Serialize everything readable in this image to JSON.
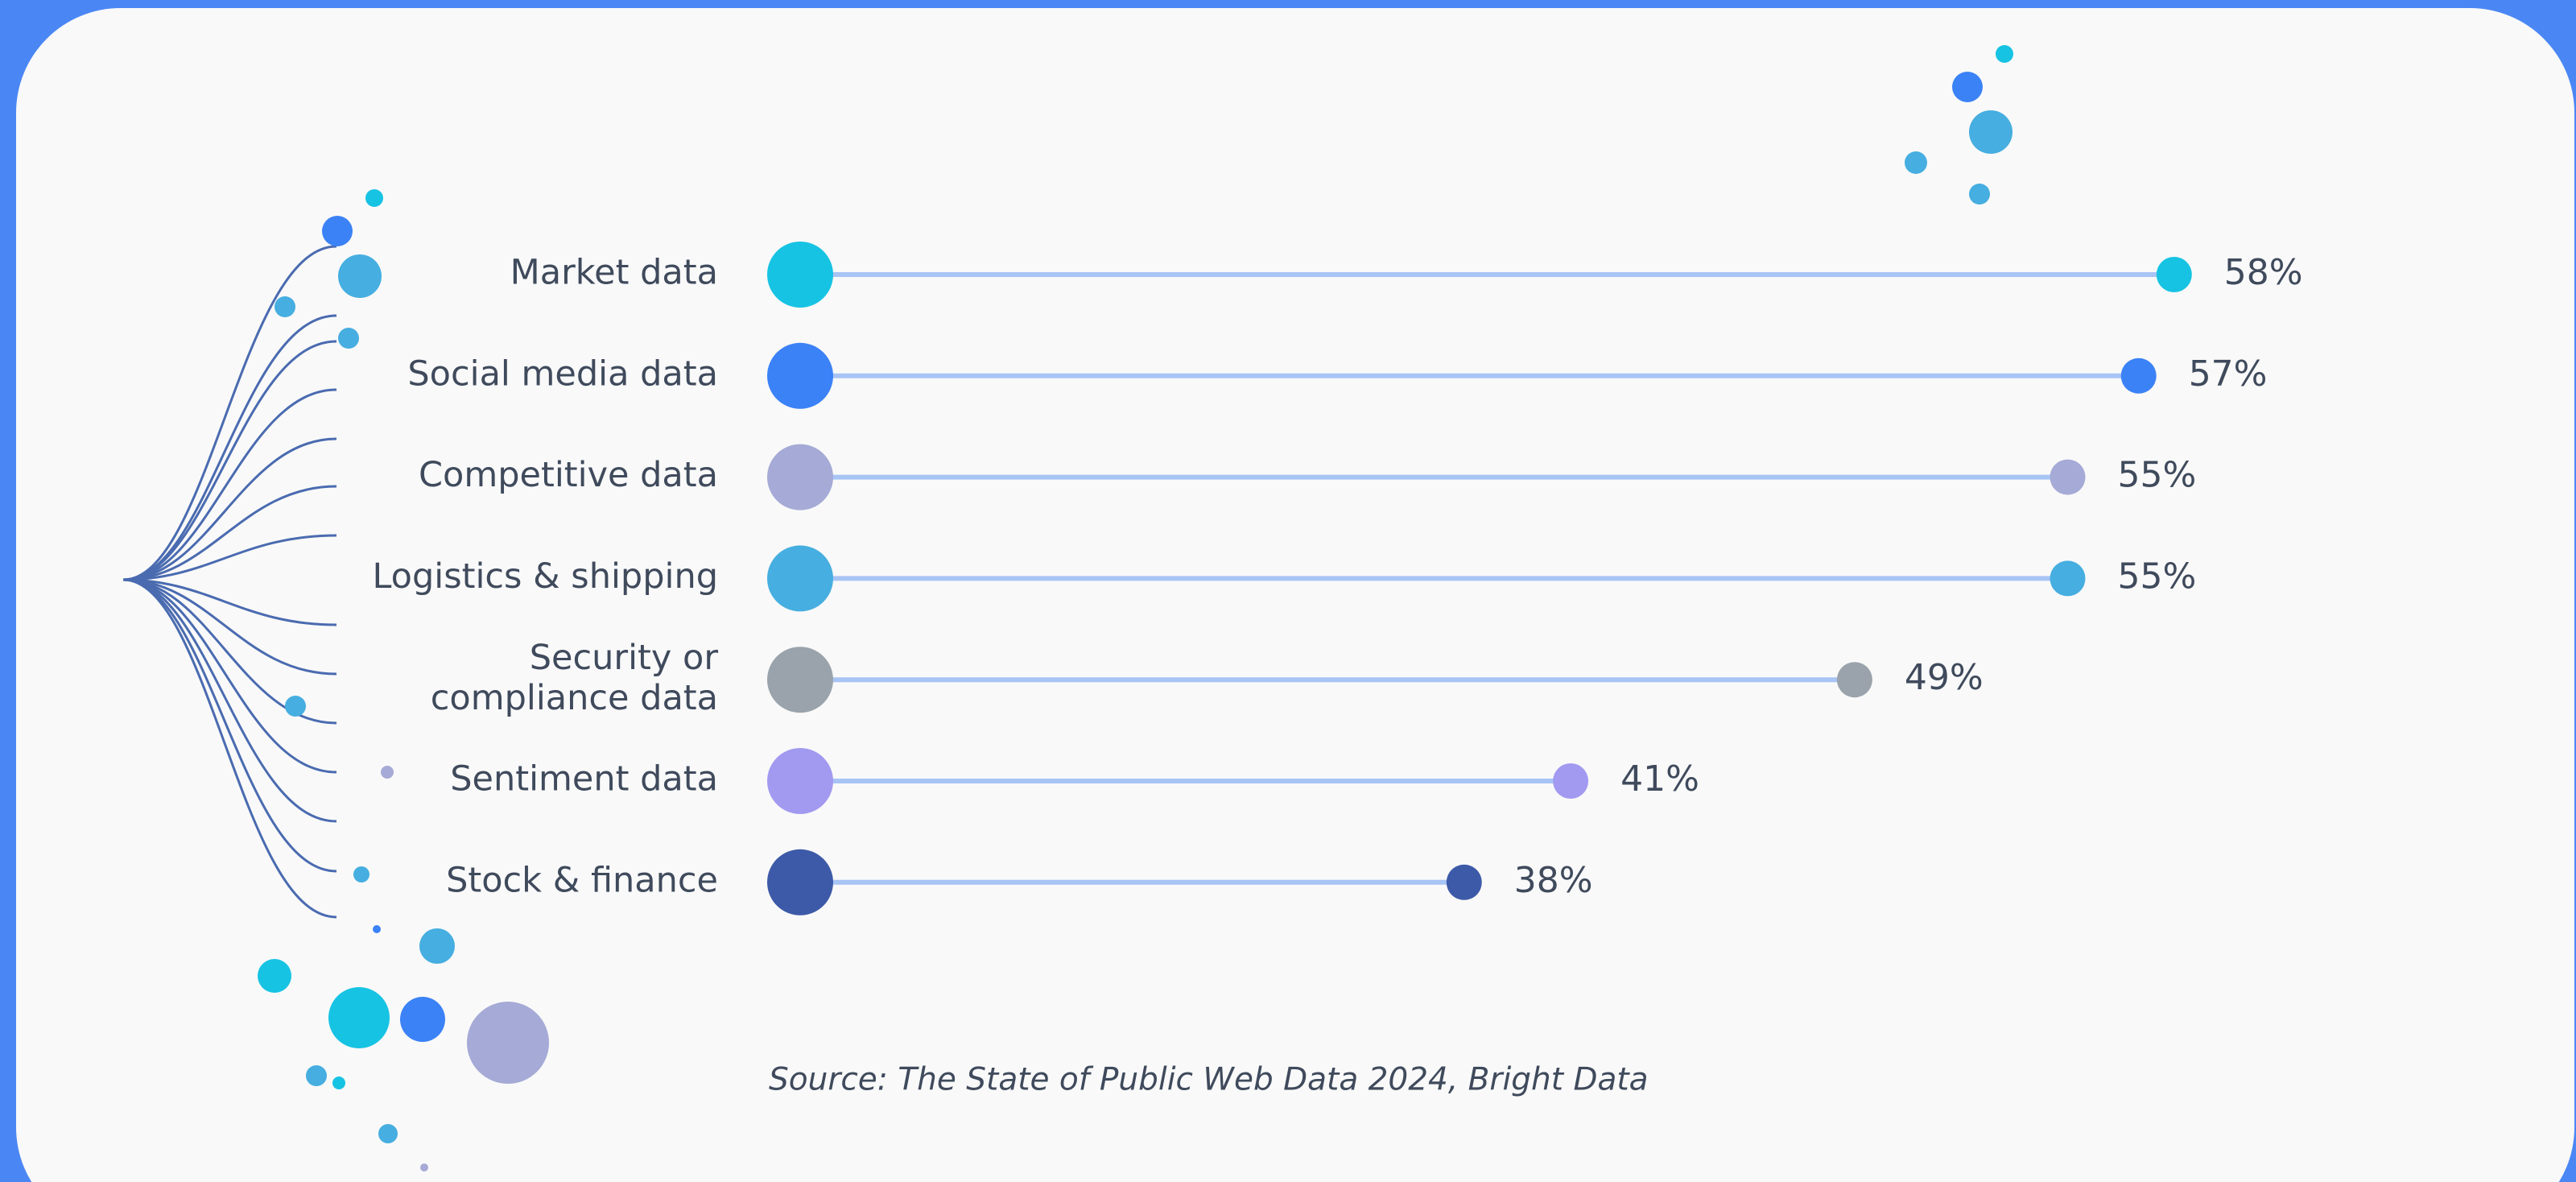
{
  "chart_data": {
    "type": "lollipop",
    "categories": [
      "Market data",
      "Social media data",
      "Competitive data",
      "Logistics & shipping",
      "Security or\ncompliance data",
      "Sentiment data",
      "Stock & finance"
    ],
    "values": [
      58,
      57,
      55,
      55,
      49,
      41,
      38
    ],
    "value_labels": [
      "58%",
      "57%",
      "55%",
      "55%",
      "49%",
      "41%",
      "38%"
    ],
    "colors": [
      "#17c3e3",
      "#3b82f6",
      "#a5aad6",
      "#46aee0",
      "#9aa3ab",
      "#a29af0",
      "#3d5aa8"
    ],
    "line_color": "#a8c4f5",
    "source": "Source: The State of Public Web Data 2024, Bright Data"
  }
}
